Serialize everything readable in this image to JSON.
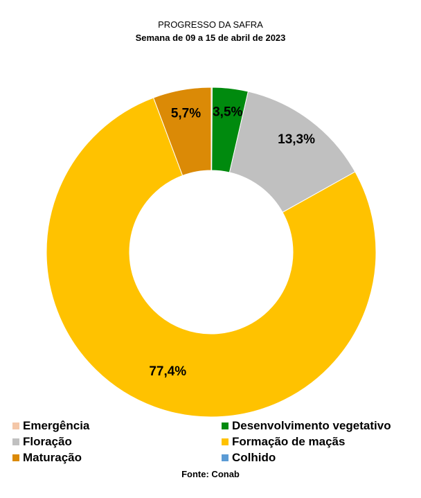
{
  "chart_data": {
    "type": "pie",
    "style": "donut",
    "title": "PROGRESSO DA SAFRA",
    "subtitle": "Semana de 09 a 15 de abril de 2023",
    "source": "Fonte: Conab",
    "legend_position": "bottom",
    "slices": [
      {
        "name": "Emergência",
        "value": 0.1,
        "label": "",
        "color": "#F4C7A8"
      },
      {
        "name": "Desenvolvimento vegetativo",
        "value": 3.5,
        "label": "3,5%",
        "color": "#008A0E"
      },
      {
        "name": "Floração",
        "value": 13.3,
        "label": "13,3%",
        "color": "#C0C0C0"
      },
      {
        "name": "Formação de maçãs",
        "value": 77.4,
        "label": "77,4%",
        "color": "#FFC200"
      },
      {
        "name": "Maturação",
        "value": 5.7,
        "label": "5,7%",
        "color": "#DB8A06"
      },
      {
        "name": "Colhido",
        "value": 0.0,
        "label": "",
        "color": "#5B9BD5"
      }
    ]
  }
}
